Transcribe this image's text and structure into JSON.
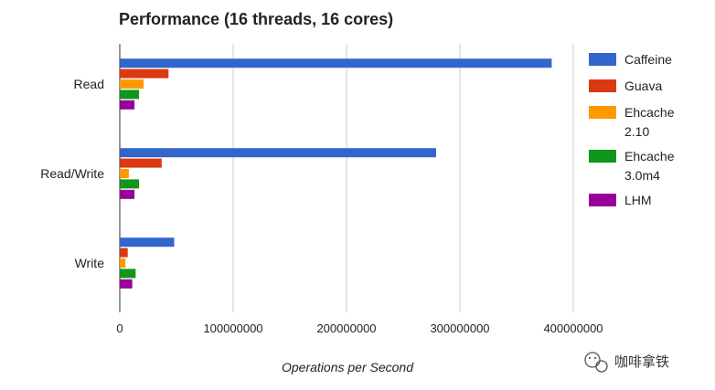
{
  "chart_data": {
    "type": "bar",
    "orientation": "horizontal",
    "title": "Performance (16 threads, 16 cores)",
    "xlabel": "Operations per Second",
    "ylabel": "",
    "categories": [
      "Read",
      "Read/Write",
      "Write"
    ],
    "series": [
      {
        "name": "Caffeine",
        "color": "#3366cc",
        "values": [
          381000000,
          279000000,
          48000000
        ]
      },
      {
        "name": "Guava",
        "color": "#dc3912",
        "values": [
          43000000,
          37000000,
          7000000
        ]
      },
      {
        "name": "Ehcache 2.10",
        "color": "#ff9900",
        "values": [
          21000000,
          8000000,
          5000000
        ]
      },
      {
        "name": "Ehcache 3.0m4",
        "color": "#109618",
        "values": [
          17000000,
          17000000,
          14000000
        ]
      },
      {
        "name": "LHM",
        "color": "#990099",
        "values": [
          13000000,
          13000000,
          11000000
        ]
      }
    ],
    "xlim": [
      0,
      400000000
    ],
    "xticks": [
      "0",
      "100000000",
      "200000000",
      "300000000",
      "400000000"
    ],
    "grid": true,
    "legend_position": "right"
  },
  "watermark": {
    "icon": "wechat-icon",
    "text": "咖啡拿铁"
  }
}
